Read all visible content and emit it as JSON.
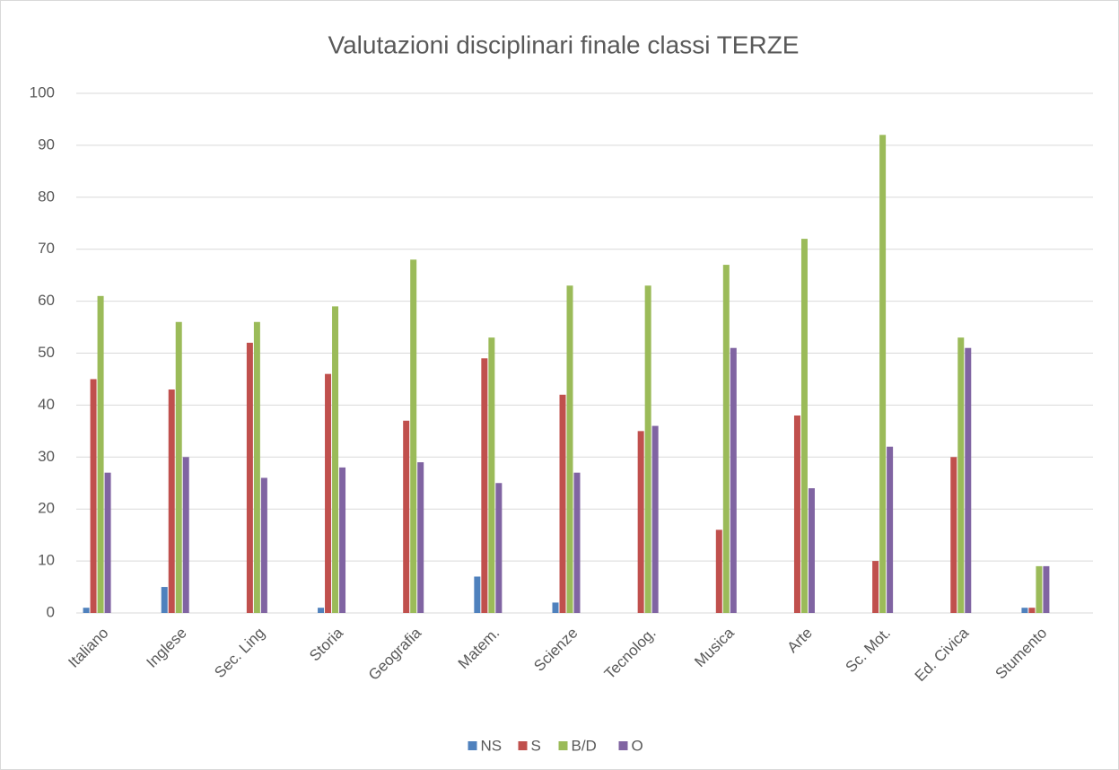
{
  "chart_data": {
    "type": "bar",
    "title": "Valutazioni disciplinari finale classi TERZE",
    "categories": [
      "Italiano",
      "Inglese",
      "Sec. Ling",
      "Storia",
      "Geografia",
      "Matem.",
      "Scienze",
      "Tecnolog.",
      "Musica",
      "Arte",
      "Sc. Mot.",
      "Ed. Civica",
      "Stumento"
    ],
    "series": [
      {
        "name": "NS",
        "color": "#4f81bd",
        "values": [
          1,
          5,
          0,
          1,
          0,
          7,
          2,
          0,
          0,
          0,
          0,
          0,
          1
        ]
      },
      {
        "name": "S",
        "color": "#c0504d",
        "values": [
          45,
          43,
          52,
          46,
          37,
          49,
          42,
          35,
          16,
          38,
          10,
          30,
          1
        ]
      },
      {
        "name": "B/D",
        "color": "#9bbb59",
        "values": [
          61,
          56,
          56,
          59,
          68,
          53,
          63,
          63,
          67,
          72,
          92,
          53,
          9
        ]
      },
      {
        "name": "O",
        "color": "#8064a2",
        "values": [
          27,
          30,
          26,
          28,
          29,
          25,
          27,
          36,
          51,
          24,
          32,
          51,
          9
        ]
      }
    ],
    "ylim": [
      0,
      100
    ],
    "yticks": [
      0,
      10,
      20,
      30,
      40,
      50,
      60,
      70,
      80,
      90,
      100
    ],
    "grid": true,
    "legend": "bottom"
  }
}
